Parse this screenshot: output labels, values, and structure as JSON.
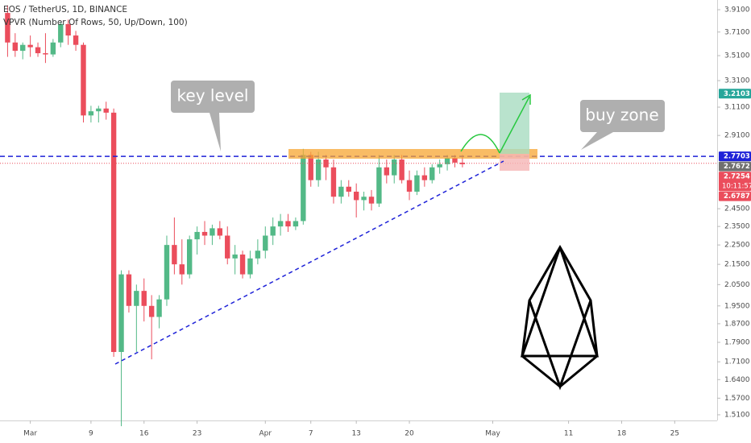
{
  "chart_data": {
    "type": "candlestick",
    "title": "EOS / TetherUS, 1D, BINANCE",
    "subtitle": "VPVR (Number Of Rows, 50, Up/Down, 100)",
    "up_color": "#53b987",
    "down_color": "#eb4d5c",
    "log_scale": true,
    "grid": false,
    "x": [
      -3,
      -2,
      -1,
      0,
      1,
      2,
      3,
      4,
      5,
      6,
      7,
      8,
      9,
      10,
      11,
      12,
      13,
      14,
      15,
      16,
      17,
      18,
      19,
      20,
      21,
      22,
      23,
      24,
      25,
      26,
      27,
      28,
      29,
      30,
      31,
      32,
      33,
      34,
      35,
      36,
      37,
      38,
      39,
      40,
      41,
      42,
      43,
      44,
      45,
      46,
      47,
      48,
      49,
      50,
      51,
      52,
      53,
      54,
      55,
      56,
      57
    ],
    "open": [
      3.88,
      3.62,
      3.55,
      3.6,
      3.58,
      3.53,
      3.52,
      3.62,
      3.78,
      3.68,
      3.6,
      3.05,
      3.08,
      3.1,
      3.07,
      1.75,
      2.1,
      1.95,
      2.02,
      1.95,
      1.9,
      1.98,
      2.25,
      2.15,
      2.1,
      2.28,
      2.32,
      2.3,
      2.34,
      2.3,
      2.18,
      2.2,
      2.1,
      2.18,
      2.22,
      2.3,
      2.35,
      2.38,
      2.35,
      2.38,
      2.78,
      2.62,
      2.75,
      2.7,
      2.52,
      2.58,
      2.55,
      2.5,
      2.52,
      2.48,
      2.7,
      2.65,
      2.75,
      2.62,
      2.55,
      2.65,
      2.62,
      2.7,
      2.72,
      2.76,
      2.73
    ],
    "high": [
      3.95,
      3.7,
      3.62,
      3.68,
      3.62,
      3.7,
      3.65,
      3.8,
      3.82,
      3.72,
      3.62,
      3.12,
      3.12,
      3.15,
      3.1,
      2.12,
      2.12,
      2.05,
      2.08,
      2.0,
      2.0,
      2.3,
      2.4,
      2.28,
      2.3,
      2.35,
      2.38,
      2.36,
      2.38,
      2.35,
      2.25,
      2.22,
      2.22,
      2.28,
      2.35,
      2.4,
      2.42,
      2.42,
      2.4,
      2.82,
      2.8,
      2.8,
      2.78,
      2.75,
      2.62,
      2.62,
      2.6,
      2.55,
      2.56,
      2.78,
      2.75,
      2.78,
      2.78,
      2.68,
      2.68,
      2.7,
      2.72,
      2.75,
      2.78,
      2.78,
      2.78
    ],
    "low": [
      3.5,
      3.5,
      3.48,
      3.5,
      3.5,
      3.45,
      3.5,
      3.58,
      3.6,
      3.55,
      3.0,
      3.0,
      3.0,
      3.02,
      1.73,
      1.47,
      1.92,
      1.75,
      1.88,
      1.72,
      1.85,
      1.95,
      2.1,
      2.05,
      2.08,
      2.2,
      2.25,
      2.25,
      2.28,
      2.15,
      2.1,
      2.08,
      2.08,
      2.15,
      2.18,
      2.25,
      2.3,
      2.32,
      2.33,
      2.36,
      2.58,
      2.58,
      2.62,
      2.48,
      2.48,
      2.52,
      2.4,
      2.44,
      2.44,
      2.46,
      2.6,
      2.6,
      2.6,
      2.5,
      2.53,
      2.58,
      2.6,
      2.66,
      2.68,
      2.7,
      2.7
    ],
    "close": [
      3.62,
      3.55,
      3.6,
      3.58,
      3.53,
      3.52,
      3.62,
      3.78,
      3.68,
      3.6,
      3.05,
      3.08,
      3.1,
      3.07,
      1.75,
      2.1,
      1.95,
      2.02,
      1.95,
      1.9,
      1.98,
      2.25,
      2.15,
      2.1,
      2.28,
      2.32,
      2.3,
      2.34,
      2.3,
      2.18,
      2.2,
      2.1,
      2.18,
      2.22,
      2.3,
      2.35,
      2.38,
      2.35,
      2.38,
      2.78,
      2.62,
      2.75,
      2.7,
      2.52,
      2.58,
      2.55,
      2.5,
      2.52,
      2.48,
      2.7,
      2.65,
      2.75,
      2.62,
      2.55,
      2.65,
      2.62,
      2.7,
      2.72,
      2.76,
      2.73,
      2.72
    ],
    "xlim": [
      -4,
      90.6
    ],
    "xticks": [
      {
        "value": 0,
        "label": "Mar"
      },
      {
        "value": 8,
        "label": "9"
      },
      {
        "value": 15,
        "label": "16"
      },
      {
        "value": 22,
        "label": "23"
      },
      {
        "value": 31,
        "label": "Apr"
      },
      {
        "value": 37,
        "label": "7"
      },
      {
        "value": 43,
        "label": "13"
      },
      {
        "value": 50,
        "label": "20"
      },
      {
        "value": 61,
        "label": "May"
      },
      {
        "value": 71,
        "label": "11"
      },
      {
        "value": 78,
        "label": "18"
      },
      {
        "value": 85,
        "label": "25"
      }
    ],
    "ylim": [
      1.49,
      4.0
    ],
    "yticks": [
      {
        "value": 3.91,
        "label": "3.9100"
      },
      {
        "value": 3.71,
        "label": "3.7100"
      },
      {
        "value": 3.51,
        "label": "3.5100"
      },
      {
        "value": 3.31,
        "label": "3.3100"
      },
      {
        "value": 3.11,
        "label": "3.1100"
      },
      {
        "value": 2.91,
        "label": "2.9100"
      },
      {
        "value": 2.45,
        "label": "2.4500"
      },
      {
        "value": 2.35,
        "label": "2.3500"
      },
      {
        "value": 2.25,
        "label": "2.2500"
      },
      {
        "value": 2.15,
        "label": "2.1500"
      },
      {
        "value": 2.05,
        "label": "2.0500"
      },
      {
        "value": 1.95,
        "label": "1.9500"
      },
      {
        "value": 1.87,
        "label": "1.8700"
      },
      {
        "value": 1.79,
        "label": "1.7900"
      },
      {
        "value": 1.71,
        "label": "1.7100"
      },
      {
        "value": 1.64,
        "label": "1.6400"
      },
      {
        "value": 1.57,
        "label": "1.5700"
      },
      {
        "value": 1.51,
        "label": "1.5100"
      }
    ],
    "price_tags": [
      {
        "value": 3.2103,
        "color": "#26a69a"
      },
      {
        "value": 2.7703,
        "color": "#1e22d8"
      },
      {
        "value": 2.7672,
        "color": "#707070"
      },
      {
        "value": 2.7254,
        "color": "#eb4d5c"
      },
      {
        "value": 2.6787,
        "color": "#eb4d5c"
      }
    ],
    "countdown": "10:11:57",
    "annotations": [
      "key level",
      "buy zone"
    ]
  }
}
